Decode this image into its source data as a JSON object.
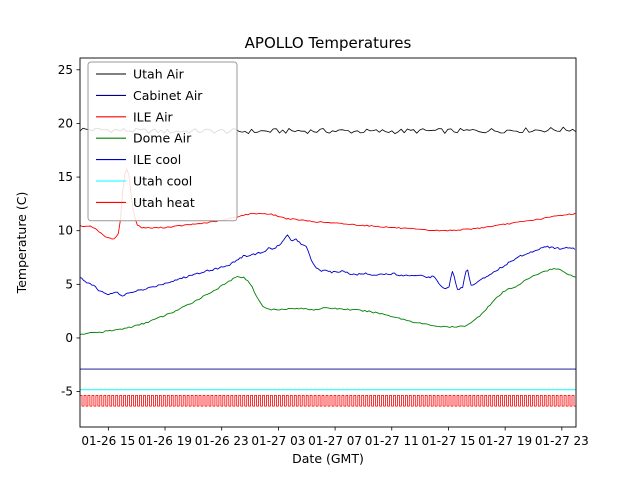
{
  "chart_data": {
    "type": "line",
    "title": "APOLLO Temperatures",
    "xlabel": "Date (GMT)",
    "ylabel": "Temperature (C)",
    "xlim": [
      0,
      35
    ],
    "ylim": [
      -8.3,
      26.1
    ],
    "yticks": [
      -5,
      0,
      5,
      10,
      15,
      20,
      25
    ],
    "ytick_labels": [
      "-5",
      "0",
      "5",
      "10",
      "15",
      "20",
      "25"
    ],
    "xticks": [
      2,
      6,
      10,
      14,
      18,
      22,
      26,
      30,
      34
    ],
    "xtick_labels": [
      "01-26 15",
      "01-26 19",
      "01-26 23",
      "01-27 03",
      "01-27 07",
      "01-27 11",
      "01-27 15",
      "01-27 19",
      "01-27 23"
    ],
    "grid": false,
    "legend_position": "upper left",
    "background_color": "#ffffff",
    "axis_color": "#000000",
    "series": [
      {
        "name": "Utah Air",
        "color": "#000000",
        "lw": 0.8,
        "noise": 0.24,
        "step": 0.22,
        "points": [
          [
            0,
            19.45
          ],
          [
            3,
            19.35
          ],
          [
            6,
            19.25
          ],
          [
            9,
            19.3
          ],
          [
            12,
            19.25
          ],
          [
            15,
            19.3
          ],
          [
            18,
            19.3
          ],
          [
            21,
            19.25
          ],
          [
            24,
            19.3
          ],
          [
            27,
            19.3
          ],
          [
            30,
            19.35
          ],
          [
            33,
            19.4
          ],
          [
            35,
            19.45
          ]
        ]
      },
      {
        "name": "Cabinet Air",
        "color": "#00008b",
        "lw": 0.9,
        "points": [
          [
            0,
            -2.9
          ],
          [
            35,
            -2.9
          ]
        ]
      },
      {
        "name": "ILE Air",
        "color": "#ff0000",
        "lw": 0.9,
        "noise": 0.05,
        "step": 0.15,
        "points": [
          [
            0,
            10.45
          ],
          [
            0.8,
            10.4
          ],
          [
            1.2,
            10.1
          ],
          [
            1.6,
            9.6
          ],
          [
            2.0,
            9.3
          ],
          [
            2.4,
            9.25
          ],
          [
            2.7,
            9.7
          ],
          [
            2.85,
            11.0
          ],
          [
            3.0,
            13.5
          ],
          [
            3.15,
            15.2
          ],
          [
            3.3,
            15.7
          ],
          [
            3.45,
            15.2
          ],
          [
            3.6,
            13.5
          ],
          [
            3.8,
            11.5
          ],
          [
            4.0,
            10.6
          ],
          [
            4.3,
            10.3
          ],
          [
            5,
            10.25
          ],
          [
            6,
            10.3
          ],
          [
            7,
            10.45
          ],
          [
            8,
            10.6
          ],
          [
            9,
            10.75
          ],
          [
            10,
            10.95
          ],
          [
            10.8,
            11.2
          ],
          [
            11.5,
            11.45
          ],
          [
            12.2,
            11.6
          ],
          [
            13,
            11.6
          ],
          [
            13.6,
            11.5
          ],
          [
            14.5,
            11.15
          ],
          [
            15.5,
            11.0
          ],
          [
            16.5,
            10.85
          ],
          [
            17.5,
            10.75
          ],
          [
            18.5,
            10.65
          ],
          [
            19.5,
            10.55
          ],
          [
            20.5,
            10.45
          ],
          [
            21.5,
            10.35
          ],
          [
            22.5,
            10.25
          ],
          [
            23.5,
            10.15
          ],
          [
            24.5,
            10.05
          ],
          [
            25.5,
            10.0
          ],
          [
            26.5,
            10.05
          ],
          [
            27.5,
            10.15
          ],
          [
            28.5,
            10.3
          ],
          [
            29.5,
            10.5
          ],
          [
            30.5,
            10.7
          ],
          [
            31.5,
            10.9
          ],
          [
            32.5,
            11.1
          ],
          [
            33.5,
            11.35
          ],
          [
            34.3,
            11.5
          ],
          [
            35,
            11.6
          ]
        ]
      },
      {
        "name": "Dome Air",
        "color": "#008000",
        "lw": 0.9,
        "noise": 0.07,
        "step": 0.15,
        "points": [
          [
            0,
            0.35
          ],
          [
            0.7,
            0.45
          ],
          [
            1.5,
            0.55
          ],
          [
            2.3,
            0.7
          ],
          [
            3,
            0.85
          ],
          [
            3.7,
            1.05
          ],
          [
            4.5,
            1.35
          ],
          [
            5.2,
            1.7
          ],
          [
            6,
            2.1
          ],
          [
            6.8,
            2.55
          ],
          [
            7.5,
            3.0
          ],
          [
            8.2,
            3.5
          ],
          [
            9,
            4.1
          ],
          [
            9.7,
            4.6
          ],
          [
            10.3,
            5.1
          ],
          [
            10.8,
            5.5
          ],
          [
            11.2,
            5.75
          ],
          [
            11.6,
            5.6
          ],
          [
            11.9,
            5.3
          ],
          [
            12.2,
            4.6
          ],
          [
            12.5,
            3.8
          ],
          [
            12.8,
            3.1
          ],
          [
            13.1,
            2.75
          ],
          [
            13.5,
            2.65
          ],
          [
            14.5,
            2.7
          ],
          [
            15.5,
            2.75
          ],
          [
            16.5,
            2.65
          ],
          [
            17.5,
            2.8
          ],
          [
            18.5,
            2.7
          ],
          [
            19.5,
            2.6
          ],
          [
            20.5,
            2.45
          ],
          [
            21.5,
            2.2
          ],
          [
            22.5,
            1.85
          ],
          [
            23.5,
            1.5
          ],
          [
            24.5,
            1.25
          ],
          [
            25.5,
            1.05
          ],
          [
            26.5,
            1.0
          ],
          [
            27.2,
            1.15
          ],
          [
            27.8,
            1.6
          ],
          [
            28.3,
            2.2
          ],
          [
            28.8,
            2.9
          ],
          [
            29.3,
            3.6
          ],
          [
            29.8,
            4.2
          ],
          [
            30.2,
            4.55
          ],
          [
            30.6,
            4.7
          ],
          [
            31,
            5.0
          ],
          [
            31.6,
            5.5
          ],
          [
            32.2,
            5.9
          ],
          [
            32.8,
            6.25
          ],
          [
            33.4,
            6.45
          ],
          [
            33.8,
            6.4
          ],
          [
            34.2,
            6.15
          ],
          [
            34.6,
            5.85
          ],
          [
            35,
            5.65
          ]
        ]
      },
      {
        "name": "ILE cool",
        "color": "#0000cd",
        "lw": 0.9,
        "noise": 0.09,
        "step": 0.12,
        "points": [
          [
            0,
            5.6
          ],
          [
            0.5,
            5.2
          ],
          [
            1,
            4.8
          ],
          [
            1.5,
            4.3
          ],
          [
            2,
            4.1
          ],
          [
            2.5,
            4.3
          ],
          [
            3,
            3.9
          ],
          [
            3.5,
            4.2
          ],
          [
            4,
            4.4
          ],
          [
            4.5,
            4.5
          ],
          [
            5,
            4.7
          ],
          [
            5.5,
            4.9
          ],
          [
            6,
            5.1
          ],
          [
            6.5,
            5.3
          ],
          [
            7,
            5.5
          ],
          [
            7.5,
            5.7
          ],
          [
            8,
            5.9
          ],
          [
            8.5,
            6.1
          ],
          [
            9,
            6.3
          ],
          [
            9.5,
            6.4
          ],
          [
            10,
            6.6
          ],
          [
            10.5,
            6.8
          ],
          [
            11,
            7.2
          ],
          [
            11.5,
            7.6
          ],
          [
            12,
            7.7
          ],
          [
            12.5,
            7.9
          ],
          [
            13,
            8.0
          ],
          [
            13.3,
            8.4
          ],
          [
            13.6,
            8.2
          ],
          [
            14,
            8.6
          ],
          [
            14.3,
            9.0
          ],
          [
            14.6,
            9.7
          ],
          [
            14.9,
            9.0
          ],
          [
            15.2,
            9.3
          ],
          [
            15.5,
            8.9
          ],
          [
            15.8,
            8.6
          ],
          [
            16,
            8.5
          ],
          [
            16.3,
            7.4
          ],
          [
            16.6,
            6.6
          ],
          [
            17,
            6.3
          ],
          [
            17.5,
            6.2
          ],
          [
            18,
            6.1
          ],
          [
            18.5,
            6.3
          ],
          [
            19,
            6.0
          ],
          [
            19.5,
            5.9
          ],
          [
            20,
            6.0
          ],
          [
            21,
            5.9
          ],
          [
            22,
            6.0
          ],
          [
            23,
            5.8
          ],
          [
            24,
            5.9
          ],
          [
            24.5,
            5.6
          ],
          [
            25,
            5.8
          ],
          [
            25.5,
            4.8
          ],
          [
            26,
            4.6
          ],
          [
            26.3,
            6.4
          ],
          [
            26.6,
            4.5
          ],
          [
            27,
            4.7
          ],
          [
            27.3,
            6.6
          ],
          [
            27.6,
            4.9
          ],
          [
            28,
            5.2
          ],
          [
            28.5,
            5.6
          ],
          [
            29,
            6.0
          ],
          [
            29.5,
            6.4
          ],
          [
            30,
            6.8
          ],
          [
            30.5,
            7.2
          ],
          [
            31,
            7.6
          ],
          [
            32,
            8.1
          ],
          [
            32.5,
            8.4
          ],
          [
            33,
            8.5
          ],
          [
            33.5,
            8.4
          ],
          [
            34,
            8.3
          ],
          [
            34.5,
            8.4
          ],
          [
            35,
            8.3
          ]
        ]
      },
      {
        "name": "Utah cool",
        "color": "#00ffff",
        "lw": 1.0,
        "points": [
          [
            0,
            -4.82
          ],
          [
            35,
            -4.82
          ]
        ]
      },
      {
        "name": "Utah heat",
        "color": "#ff0000",
        "lw": 0.8,
        "square_wave": {
          "y_high": -5.35,
          "y_low": -6.35,
          "period": 0.28
        }
      }
    ],
    "legend_labels": [
      "Utah Air",
      "Cabinet Air",
      "ILE Air",
      "Dome Air",
      "ILE cool",
      "Utah cool",
      "Utah heat"
    ]
  }
}
